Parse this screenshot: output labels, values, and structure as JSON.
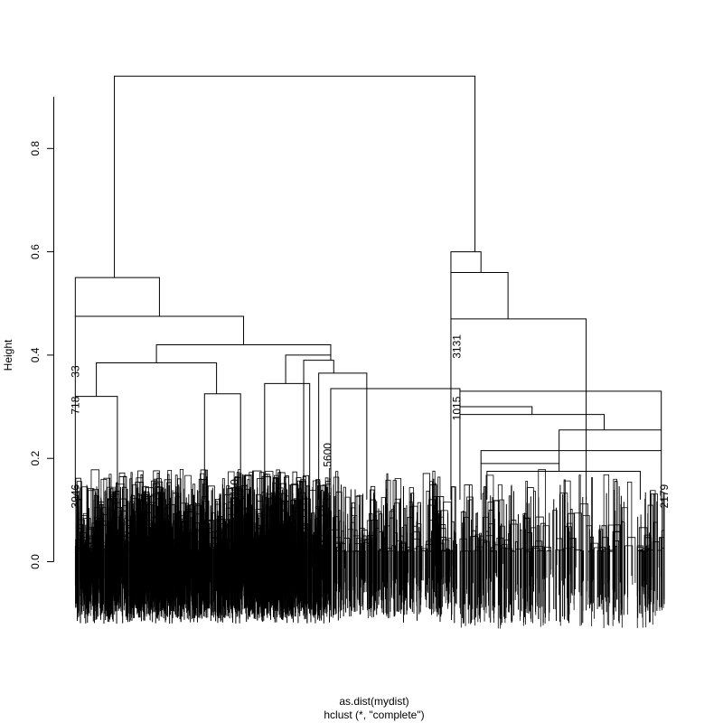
{
  "chart_data": {
    "type": "dendrogram",
    "title": "",
    "xlabel": "as.dist(mydist)",
    "sublabel": "hclust (*, \"complete\")",
    "ylabel": "Height",
    "ylim": [
      0.0,
      0.95
    ],
    "yticks": [
      {
        "value": 0.0,
        "label": "0.0"
      },
      {
        "value": 0.2,
        "label": "0.2"
      },
      {
        "value": 0.4,
        "label": "0.4"
      },
      {
        "value": 0.6,
        "label": "0.6"
      },
      {
        "value": 0.8,
        "label": "0.8"
      }
    ],
    "grid": false,
    "legend": "none",
    "leaf_labels": [
      {
        "label": "33",
        "x": 0.005,
        "height": 0.38
      },
      {
        "label": "718",
        "x": 0.005,
        "height": 0.32
      },
      {
        "label": "3131",
        "x": 0.64,
        "height": 0.44
      },
      {
        "label": "1015",
        "x": 0.64,
        "height": 0.32
      },
      {
        "label": "3946",
        "x": 0.005,
        "height": 0.15
      },
      {
        "label": "2179",
        "x": 0.985,
        "height": 0.15
      },
      {
        "label": "2410",
        "x": 0.27,
        "height": 0.16
      },
      {
        "label": "5600",
        "x": 0.425,
        "height": 0.23
      }
    ],
    "merges": [
      {
        "left": 0.07,
        "right": 0.67,
        "height": 0.94
      },
      {
        "left": 0.005,
        "right": 0.145,
        "height": 0.55
      },
      {
        "left": 0.005,
        "right": 0.285,
        "height": 0.475
      },
      {
        "left": 0.14,
        "right": 0.43,
        "height": 0.42
      },
      {
        "left": 0.04,
        "right": 0.24,
        "height": 0.385
      },
      {
        "left": 0.005,
        "right": 0.075,
        "height": 0.32
      },
      {
        "left": 0.22,
        "right": 0.28,
        "height": 0.325
      },
      {
        "left": 0.355,
        "right": 0.43,
        "height": 0.4
      },
      {
        "left": 0.32,
        "right": 0.395,
        "height": 0.345
      },
      {
        "left": 0.385,
        "right": 0.435,
        "height": 0.39
      },
      {
        "left": 0.41,
        "right": 0.49,
        "height": 0.365
      },
      {
        "left": 0.43,
        "right": 0.645,
        "height": 0.335
      },
      {
        "left": 0.63,
        "right": 0.68,
        "height": 0.6
      },
      {
        "left": 0.63,
        "right": 0.725,
        "height": 0.56
      },
      {
        "left": 0.63,
        "right": 0.855,
        "height": 0.47
      },
      {
        "left": 0.645,
        "right": 0.98,
        "height": 0.33
      },
      {
        "left": 0.645,
        "right": 0.765,
        "height": 0.3
      },
      {
        "left": 0.645,
        "right": 0.885,
        "height": 0.285
      },
      {
        "left": 0.81,
        "right": 0.98,
        "height": 0.255
      },
      {
        "left": 0.68,
        "right": 0.98,
        "height": 0.215
      },
      {
        "left": 0.69,
        "right": 0.945,
        "height": 0.175
      },
      {
        "left": 0.68,
        "right": 0.81,
        "height": 0.19
      }
    ]
  }
}
